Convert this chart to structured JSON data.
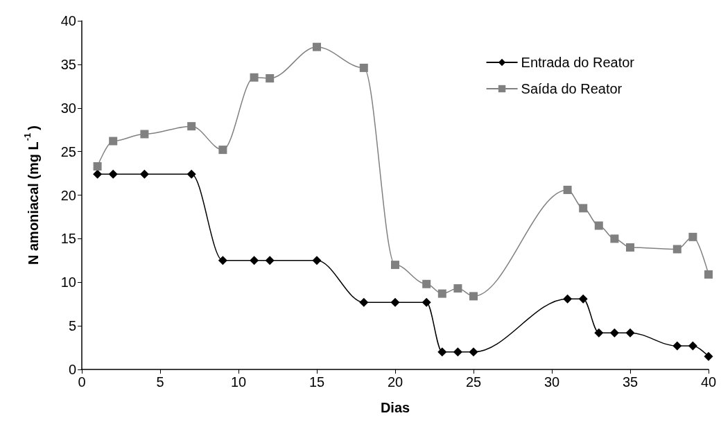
{
  "chart_data": {
    "type": "line",
    "xlabel": "Dias",
    "ylabel": "N amoniacal (mg L$^{-1}$)",
    "xlim": [
      0,
      40
    ],
    "xticks": [
      0,
      5,
      10,
      15,
      20,
      25,
      30,
      35,
      40
    ],
    "ylim": [
      0,
      40
    ],
    "yticks": [
      0,
      5,
      10,
      15,
      20,
      25,
      30,
      35,
      40
    ],
    "grid": false,
    "legend": "top right",
    "x": [
      1,
      2,
      4,
      7,
      9,
      11,
      12,
      15,
      18,
      20,
      22,
      23,
      24,
      25,
      31,
      32,
      33,
      34,
      35,
      38,
      39,
      40
    ],
    "series": [
      {
        "name": "Entrada do Reator",
        "color": "#000000",
        "marker": "diamond",
        "values": [
          22.4,
          22.4,
          22.4,
          22.4,
          12.5,
          12.5,
          12.5,
          12.5,
          7.7,
          7.7,
          7.7,
          2.0,
          2.0,
          2.0,
          8.1,
          8.1,
          4.2,
          4.2,
          4.2,
          2.7,
          2.7,
          1.5
        ]
      },
      {
        "name": "Saída do Reator",
        "color": "#808080",
        "marker": "square",
        "values": [
          23.3,
          26.2,
          27.0,
          27.9,
          25.2,
          33.5,
          33.4,
          37.0,
          34.6,
          12.0,
          9.8,
          8.7,
          9.3,
          8.4,
          20.6,
          18.5,
          16.5,
          15.0,
          14.0,
          13.8,
          15.2,
          10.9
        ]
      }
    ]
  }
}
